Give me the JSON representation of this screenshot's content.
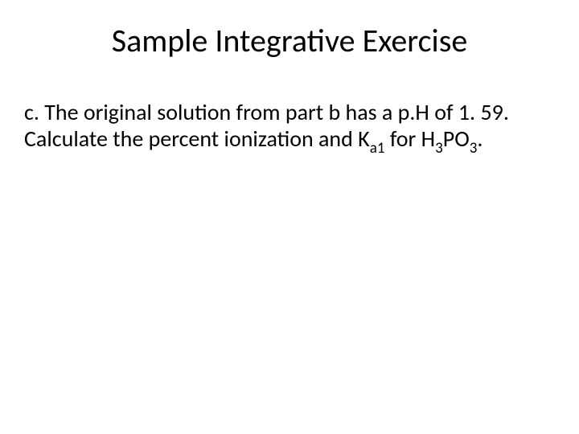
{
  "slide": {
    "title": "Sample Integrative Exercise",
    "segments": {
      "s1": "c. The original solution from part b has a p.H of 1. 59. Calculate the percent ionization and K",
      "sub_a1": "a1",
      "s2": " for H",
      "sub_3a": "3",
      "s3": "PO",
      "sub_3b": "3",
      "s4": "."
    }
  },
  "style": {
    "background_color": "#ffffff",
    "text_color": "#000000",
    "title_fontsize": 40,
    "body_fontsize": 28,
    "font_family": "Calibri"
  }
}
